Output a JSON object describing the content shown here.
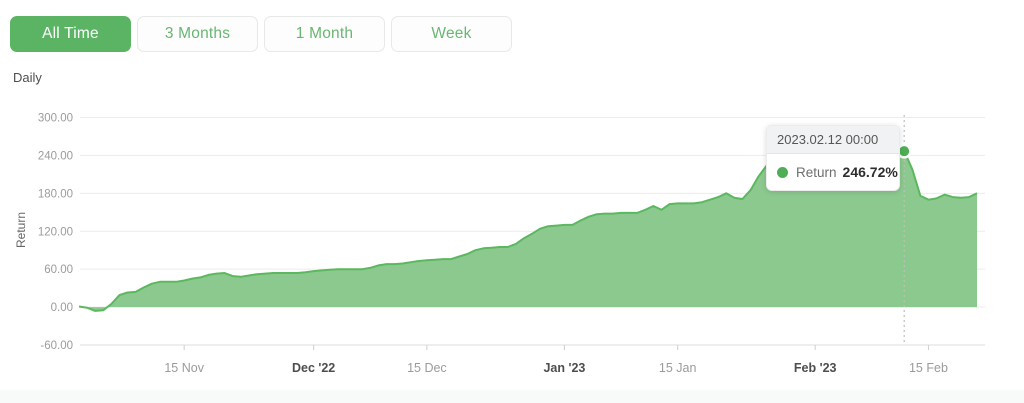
{
  "timeframe_buttons": [
    {
      "label": "All Time",
      "active": true
    },
    {
      "label": "3 Months",
      "active": false
    },
    {
      "label": "1 Month",
      "active": false
    },
    {
      "label": "Week",
      "active": false
    }
  ],
  "frequency_label": "Daily",
  "colors": {
    "accent_green": "#5bb463",
    "button_text_green": "#69b673",
    "area_fill": "#8cc98f",
    "line_stroke": "#5cb85f",
    "marker_green": "#4fae55",
    "grid_line": "#ececec",
    "axis_line": "#dcdcdc",
    "tick_mark": "#cfcfcf",
    "axis_text": "#9b9b9b",
    "axis_text_bold": "#4d4d4d",
    "dashed_marker_line": "#bdbdbd",
    "ylabel_text": "#666666"
  },
  "tooltip": {
    "date": "2023.02.12 00:00",
    "series": "Return",
    "value": "246.72%"
  },
  "chart_data": {
    "type": "area",
    "title": "",
    "xlabel": "",
    "ylabel": "Return",
    "frequency": "Daily",
    "start_date": "2022-11-02",
    "ylim": [
      -60,
      300
    ],
    "grid": true,
    "legend_position": "none",
    "y_ticks": [
      {
        "value": 300,
        "label": "300.00"
      },
      {
        "value": 240,
        "label": "240.00"
      },
      {
        "value": 180,
        "label": "180.00"
      },
      {
        "value": 120,
        "label": "120.00"
      },
      {
        "value": 60,
        "label": "60.00"
      },
      {
        "value": 0,
        "label": "0.00"
      },
      {
        "value": -60,
        "label": "-60.00"
      }
    ],
    "x_ticks": [
      {
        "day_index": 13,
        "label": "15 Nov",
        "bold": false
      },
      {
        "day_index": 29,
        "label": "Dec '22",
        "bold": true
      },
      {
        "day_index": 43,
        "label": "15 Dec",
        "bold": false
      },
      {
        "day_index": 60,
        "label": "Jan '23",
        "bold": true
      },
      {
        "day_index": 74,
        "label": "15 Jan",
        "bold": false
      },
      {
        "day_index": 91,
        "label": "Feb '23",
        "bold": true
      },
      {
        "day_index": 105,
        "label": "15 Feb",
        "bold": false
      }
    ],
    "series": [
      {
        "name": "Return",
        "unit": "%",
        "values": [
          1,
          -1,
          -6,
          -5,
          5,
          19,
          23,
          24,
          31,
          37,
          40,
          40,
          40,
          42,
          45,
          47,
          51,
          53,
          54,
          49,
          48,
          50,
          52,
          53,
          54,
          54,
          54,
          54,
          55,
          57,
          58,
          59,
          60,
          60,
          60,
          60,
          62,
          66,
          68,
          68,
          69,
          71,
          73,
          74,
          75,
          76,
          76,
          80,
          84,
          90,
          93,
          94,
          95,
          95,
          100,
          109,
          116,
          124,
          128,
          129,
          130,
          130,
          137,
          143,
          147,
          148,
          148,
          149,
          149,
          149,
          154,
          160,
          154,
          163,
          164,
          164,
          164,
          166,
          170,
          174,
          180,
          173,
          171,
          185,
          207,
          224,
          227,
          228,
          229,
          230,
          231,
          231,
          232,
          233,
          233,
          234,
          235,
          236,
          236,
          237,
          238,
          240,
          246.72,
          218,
          176,
          170,
          172,
          178,
          174,
          173,
          174,
          180
        ]
      }
    ],
    "highlight": {
      "day_index": 102,
      "value": 246.72,
      "date_label": "2023.02.12 00:00",
      "series_label": "Return",
      "value_label": "246.72%"
    }
  }
}
